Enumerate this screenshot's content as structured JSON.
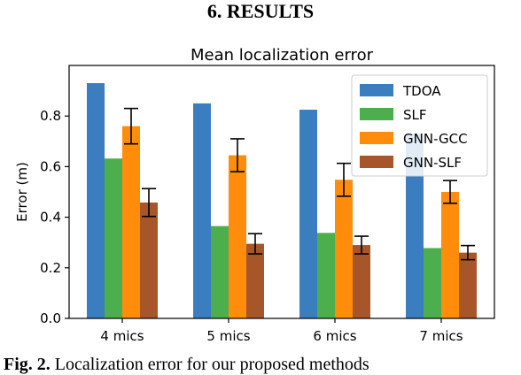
{
  "section_heading": "6.   RESULTS",
  "caption": {
    "label": "Fig. 2.",
    "text": "Localization error for our proposed methods"
  },
  "colors": {
    "TDOA": "#3a7ebf",
    "SLF": "#4cae4c",
    "GNN-GCC": "#ff8c0a",
    "GNN-SLF": "#a65628"
  },
  "chart_data": {
    "type": "bar",
    "title": "Mean localization error",
    "xlabel": "",
    "ylabel": "Error (m)",
    "categories": [
      "4 mics",
      "5 mics",
      "6 mics",
      "7 mics"
    ],
    "ylim": [
      0,
      1.0
    ],
    "yticks": [
      "0.0",
      "0.2",
      "0.4",
      "0.6",
      "0.8"
    ],
    "grid": false,
    "legend_position": "top-right",
    "series": [
      {
        "name": "TDOA",
        "values": [
          0.93,
          0.85,
          0.825,
          0.73
        ]
      },
      {
        "name": "SLF",
        "values": [
          0.632,
          0.365,
          0.338,
          0.278
        ]
      },
      {
        "name": "GNN-GCC",
        "values": [
          0.76,
          0.645,
          0.548,
          0.5
        ],
        "errors": [
          0.07,
          0.065,
          0.065,
          0.045
        ]
      },
      {
        "name": "GNN-SLF",
        "values": [
          0.458,
          0.295,
          0.29,
          0.26
        ],
        "errors": [
          0.055,
          0.04,
          0.035,
          0.028
        ]
      }
    ]
  }
}
